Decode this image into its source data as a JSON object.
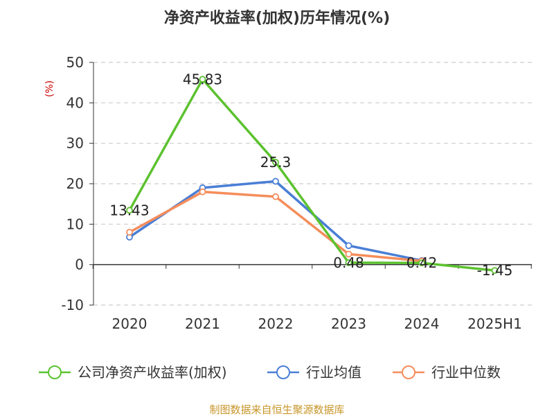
{
  "chart_data": {
    "type": "line",
    "title": "净资产收益率(加权)历年情况(%)",
    "ylabel": "(%)",
    "categories": [
      "2020",
      "2021",
      "2022",
      "2023",
      "2024",
      "2025H1"
    ],
    "ylim": [
      -10,
      50
    ],
    "yticks": [
      -10,
      0,
      10,
      20,
      30,
      40,
      50
    ],
    "grid": true,
    "legend_position": "bottom",
    "series": [
      {
        "name": "公司净资产收益率(加权)",
        "color": "#5cc22f",
        "values": [
          13.43,
          45.83,
          25.3,
          0.48,
          0.42,
          -1.45
        ],
        "labels": [
          "13.43",
          "45.83",
          "25.3",
          "0.48",
          "0.42",
          "-1.45"
        ]
      },
      {
        "name": "行业均值",
        "color": "#4a7fd6",
        "values": [
          6.8,
          19.0,
          20.6,
          4.7,
          1.0,
          null
        ]
      },
      {
        "name": "行业中位数",
        "color": "#f58d5b",
        "values": [
          8.0,
          18.0,
          16.8,
          2.6,
          0.9,
          null
        ]
      }
    ]
  },
  "source": {
    "text": "制图数据来自恒生聚源数据库",
    "color": "#c8962a"
  }
}
